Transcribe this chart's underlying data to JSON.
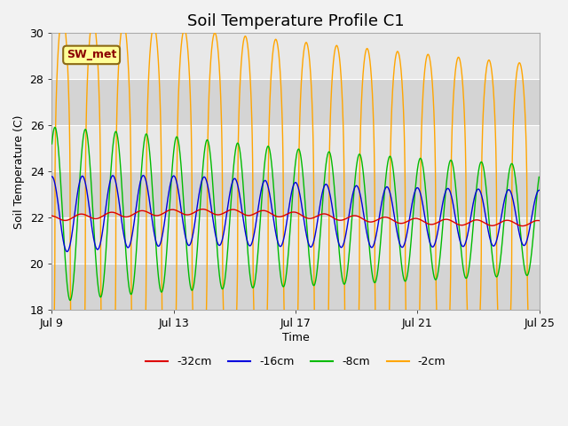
{
  "title": "Soil Temperature Profile C1",
  "xlabel": "Time",
  "ylabel": "Soil Temperature (C)",
  "ylim": [
    18,
    30
  ],
  "yticks": [
    18,
    20,
    22,
    24,
    26,
    28,
    30
  ],
  "x_tick_days": [
    9,
    13,
    17,
    21,
    25
  ],
  "x_tick_labels": [
    "Jul 9",
    "Jul 13",
    "Jul 17",
    "Jul 21",
    "Jul 25"
  ],
  "annotation_text": "SW_met",
  "annotation_color": "#8B0000",
  "annotation_bg": "#FFFF99",
  "annotation_border": "#8B6914",
  "colors": {
    "-32cm": "#DD0000",
    "-16cm": "#0000DD",
    "-8cm": "#00BB00",
    "-2cm": "#FFA500"
  },
  "plot_bg": "#E8E8E8",
  "fig_bg": "#F2F2F2",
  "band_colors": [
    "#DCDCDC",
    "#E8E8E8"
  ],
  "title_fontsize": 13,
  "axis_label_fontsize": 9,
  "tick_fontsize": 9,
  "legend_fontsize": 9
}
